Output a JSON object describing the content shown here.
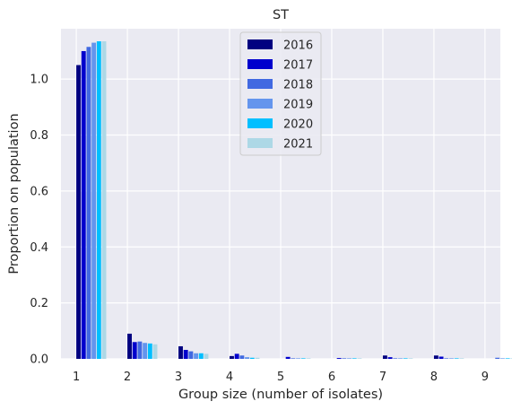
{
  "chart_data": {
    "type": "bar",
    "title": "ST",
    "xlabel": "Group size (number of isolates)",
    "ylabel": "Proportion on population",
    "xlim": [
      0.7,
      9.3
    ],
    "ylim": [
      0,
      1.18
    ],
    "x_ticks": [
      "1",
      "2",
      "3",
      "4",
      "5",
      "6",
      "7",
      "8",
      "9"
    ],
    "y_ticks": [
      "0.0",
      "0.2",
      "0.4",
      "0.6",
      "0.8",
      "1.0"
    ],
    "grid": true,
    "legend_position": "top-center",
    "categories": [
      1,
      2,
      3,
      4,
      5,
      6,
      7,
      8,
      9
    ],
    "series": [
      {
        "name": "2016",
        "color": "#000080",
        "values": [
          1.05,
          0.09,
          0.045,
          0.01,
          0.0,
          0.0,
          0.012,
          0.012,
          0.0
        ]
      },
      {
        "name": "2017",
        "color": "#0000cd",
        "values": [
          1.1,
          0.06,
          0.032,
          0.018,
          0.007,
          0.003,
          0.006,
          0.008,
          0.0
        ]
      },
      {
        "name": "2018",
        "color": "#4169e1",
        "values": [
          1.115,
          0.062,
          0.027,
          0.012,
          0.002,
          0.002,
          0.002,
          0.002,
          0.004
        ]
      },
      {
        "name": "2019",
        "color": "#6495ed",
        "values": [
          1.13,
          0.057,
          0.02,
          0.006,
          0.002,
          0.002,
          0.002,
          0.002,
          0.002
        ]
      },
      {
        "name": "2020",
        "color": "#00bfff",
        "values": [
          1.135,
          0.055,
          0.02,
          0.004,
          0.002,
          0.002,
          0.002,
          0.002,
          0.002
        ]
      },
      {
        "name": "2021",
        "color": "#add8e6",
        "values": [
          1.135,
          0.052,
          0.018,
          0.004,
          0.002,
          0.002,
          0.002,
          0.002,
          0.002
        ]
      }
    ]
  }
}
